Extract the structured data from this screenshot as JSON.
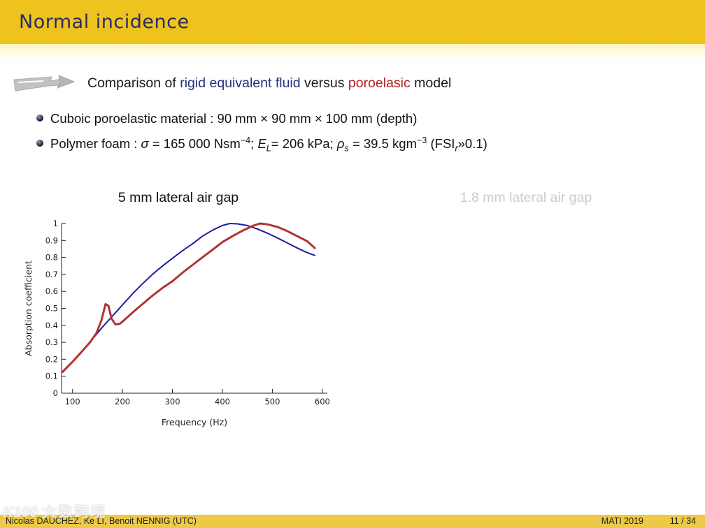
{
  "header": {
    "title": "Normal incidence"
  },
  "subtitle": {
    "segments": [
      {
        "t": "Comparison of "
      },
      {
        "t": "rigid equivalent fluid",
        "c": "#24307e"
      },
      {
        "t": " versus "
      },
      {
        "t": "poroelasic",
        "c": "#b22222"
      },
      {
        "t": " model"
      }
    ]
  },
  "bullets": [
    {
      "segments": [
        {
          "t": "Cuboic poroelastic material : 90 mm × 90 mm × 100 mm (depth)"
        }
      ]
    },
    {
      "segments": [
        {
          "t": "Polymer foam : "
        },
        {
          "t": "σ",
          "i": true
        },
        {
          "t": " = 165 000 Nsm"
        },
        {
          "t": "−4",
          "sup": true
        },
        {
          "t": "; "
        },
        {
          "t": "E",
          "i": true
        },
        {
          "t": "L",
          "i": true,
          "sub": true
        },
        {
          "t": "= 206 kPa; "
        },
        {
          "t": "ρ",
          "i": true
        },
        {
          "t": "s",
          "i": true,
          "sub": true
        },
        {
          "t": " = 39.5 kgm"
        },
        {
          "t": "−3",
          "sup": true
        },
        {
          "t": " (FSI"
        },
        {
          "t": "r",
          "i": true,
          "sub": true
        },
        {
          "t": "»0.1)"
        }
      ]
    }
  ],
  "panels": [
    {
      "title": "5 mm lateral air gap"
    },
    {
      "title": "1.8 mm lateral air gap"
    }
  ],
  "chart_data": {
    "type": "line",
    "title": "5 mm lateral air gap",
    "xlabel": "Frequency (Hz)",
    "ylabel": "Absorption coefficient",
    "xlim": [
      78,
      610
    ],
    "ylim": [
      0,
      1
    ],
    "xticks": [
      100,
      200,
      300,
      400,
      500,
      600
    ],
    "yticks": [
      0,
      0.1,
      0.2,
      0.3,
      0.4,
      0.5,
      0.6,
      0.7,
      0.8,
      0.9,
      1
    ],
    "grid": false,
    "legend": "none",
    "series": [
      {
        "name": "rigid equivalent fluid",
        "color": "#1f1f9c",
        "width": 2,
        "x": [
          80,
          100,
          120,
          140,
          160,
          180,
          200,
          220,
          240,
          260,
          280,
          300,
          320,
          340,
          360,
          380,
          400,
          415,
          430,
          450,
          470,
          490,
          510,
          530,
          550,
          570,
          585
        ],
        "y": [
          0.125,
          0.185,
          0.25,
          0.32,
          0.39,
          0.455,
          0.52,
          0.585,
          0.645,
          0.7,
          0.75,
          0.795,
          0.84,
          0.88,
          0.925,
          0.96,
          0.988,
          1.0,
          0.998,
          0.988,
          0.968,
          0.943,
          0.915,
          0.885,
          0.855,
          0.828,
          0.812
        ]
      },
      {
        "name": "poroelastic",
        "color": "#b23333",
        "width": 3,
        "x": [
          80,
          100,
          120,
          135,
          148,
          158,
          166,
          172,
          178,
          186,
          195,
          205,
          220,
          240,
          260,
          280,
          300,
          320,
          340,
          360,
          380,
          400,
          420,
          440,
          460,
          475,
          490,
          510,
          530,
          550,
          570,
          585
        ],
        "y": [
          0.125,
          0.185,
          0.25,
          0.3,
          0.355,
          0.43,
          0.525,
          0.515,
          0.44,
          0.405,
          0.41,
          0.435,
          0.475,
          0.525,
          0.575,
          0.62,
          0.66,
          0.71,
          0.755,
          0.8,
          0.845,
          0.89,
          0.925,
          0.957,
          0.985,
          1.0,
          0.995,
          0.98,
          0.955,
          0.925,
          0.895,
          0.855
        ]
      }
    ]
  },
  "footer": {
    "authors": "Nicolas DAUCHEZ, Ke LI, Benoit NENNIG  (UTC)",
    "conference": "MATI 2019",
    "page": "11 / 34"
  },
  "watermark": {
    "logo": "K100",
    "text": "大数跨境"
  },
  "colors": {
    "header_bg": "#eec31d",
    "footer_bg": "#edc946",
    "header_title": "#2b2b66",
    "blue_curve": "#1f1f9c",
    "red_curve": "#b23333",
    "faded_title": "#cccccc"
  }
}
